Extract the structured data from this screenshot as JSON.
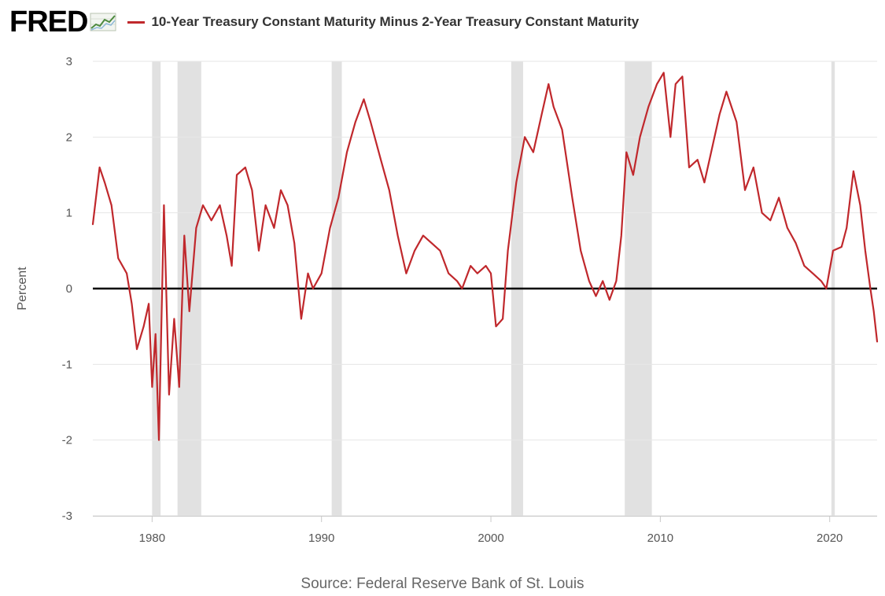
{
  "header": {
    "logo_text": "FRED",
    "legend_label": "10-Year Treasury Constant Maturity Minus 2-Year Treasury Constant Maturity"
  },
  "source": "Source: Federal Reserve Bank of St. Louis",
  "colors": {
    "series": "#c0282c",
    "recession": "#e1e1e1",
    "grid": "#e6e6e6",
    "zero_line": "#000000",
    "logo_chart": "#4d8a3f"
  },
  "chart_data": {
    "type": "line",
    "title": "",
    "xlabel": "",
    "ylabel": "Percent",
    "xlim": [
      1976.5,
      2022.8
    ],
    "ylim": [
      -3,
      3
    ],
    "x_ticks": [
      1980,
      1990,
      2000,
      2010,
      2020
    ],
    "x_tick_labels": [
      "1980",
      "1990",
      "2000",
      "2010",
      "2020"
    ],
    "y_ticks": [
      -3,
      -2,
      -1,
      0,
      1,
      2,
      3
    ],
    "y_tick_labels": [
      "-3",
      "-2",
      "-1",
      "0",
      "1",
      "2",
      "3"
    ],
    "grid": "horizontal",
    "reference_line": 0,
    "recessions": [
      [
        1980.0,
        1980.5
      ],
      [
        1981.5,
        1982.9
      ],
      [
        1990.6,
        1991.2
      ],
      [
        2001.2,
        2001.9
      ],
      [
        2007.9,
        2009.5
      ],
      [
        2020.1,
        2020.3
      ]
    ],
    "series": [
      {
        "name": "10-Year Treasury Constant Maturity Minus 2-Year Treasury Constant Maturity",
        "x": [
          1976.5,
          1976.9,
          1977.2,
          1977.6,
          1978.0,
          1978.5,
          1978.8,
          1979.1,
          1979.5,
          1979.8,
          1980.0,
          1980.2,
          1980.4,
          1980.7,
          1981.0,
          1981.3,
          1981.6,
          1981.9,
          1982.2,
          1982.6,
          1983.0,
          1983.5,
          1984.0,
          1984.4,
          1984.7,
          1985.0,
          1985.5,
          1985.9,
          1986.3,
          1986.7,
          1987.2,
          1987.6,
          1988.0,
          1988.4,
          1988.8,
          1989.2,
          1989.5,
          1990.0,
          1990.5,
          1991.0,
          1991.5,
          1992.0,
          1992.5,
          1992.9,
          1993.5,
          1994.0,
          1994.5,
          1995.0,
          1995.5,
          1996.0,
          1996.5,
          1997.0,
          1997.5,
          1998.0,
          1998.3,
          1998.8,
          1999.2,
          1999.7,
          2000.0,
          2000.3,
          2000.7,
          2001.0,
          2001.5,
          2002.0,
          2002.5,
          2003.0,
          2003.4,
          2003.7,
          2004.2,
          2004.8,
          2005.3,
          2005.8,
          2006.2,
          2006.6,
          2007.0,
          2007.4,
          2007.7,
          2008.0,
          2008.4,
          2008.8,
          2009.3,
          2009.8,
          2010.2,
          2010.6,
          2010.9,
          2011.3,
          2011.7,
          2012.2,
          2012.6,
          2013.0,
          2013.5,
          2013.9,
          2014.5,
          2015.0,
          2015.5,
          2016.0,
          2016.5,
          2017.0,
          2017.5,
          2018.0,
          2018.5,
          2019.0,
          2019.5,
          2019.8,
          2020.2,
          2020.7,
          2021.0,
          2021.4,
          2021.8,
          2022.1,
          2022.4,
          2022.6,
          2022.8
        ],
        "values": [
          0.85,
          1.6,
          1.4,
          1.1,
          0.4,
          0.2,
          -0.2,
          -0.8,
          -0.5,
          -0.2,
          -1.3,
          -0.6,
          -2.0,
          1.1,
          -1.4,
          -0.4,
          -1.3,
          0.7,
          -0.3,
          0.8,
          1.1,
          0.9,
          1.1,
          0.7,
          0.3,
          1.5,
          1.6,
          1.3,
          0.5,
          1.1,
          0.8,
          1.3,
          1.1,
          0.6,
          -0.4,
          0.2,
          0.0,
          0.2,
          0.8,
          1.2,
          1.8,
          2.2,
          2.5,
          2.2,
          1.7,
          1.3,
          0.7,
          0.2,
          0.5,
          0.7,
          0.6,
          0.5,
          0.2,
          0.1,
          0.0,
          0.3,
          0.2,
          0.3,
          0.2,
          -0.5,
          -0.4,
          0.5,
          1.4,
          2.0,
          1.8,
          2.3,
          2.7,
          2.4,
          2.1,
          1.2,
          0.5,
          0.1,
          -0.1,
          0.1,
          -0.15,
          0.1,
          0.7,
          1.8,
          1.5,
          2.0,
          2.4,
          2.7,
          2.85,
          2.0,
          2.7,
          2.8,
          1.6,
          1.7,
          1.4,
          1.8,
          2.3,
          2.6,
          2.2,
          1.3,
          1.6,
          1.0,
          0.9,
          1.2,
          0.8,
          0.6,
          0.3,
          0.2,
          0.1,
          0.0,
          0.5,
          0.55,
          0.8,
          1.55,
          1.1,
          0.5,
          0.0,
          -0.3,
          -0.7
        ]
      }
    ]
  }
}
